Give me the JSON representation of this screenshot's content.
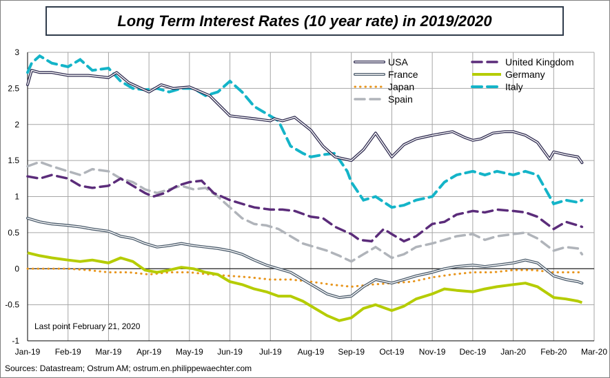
{
  "chart_data": {
    "type": "line",
    "title": "Long Term Interest Rates (10 year rate) in 2019/2020",
    "annotation": "Last point February 21, 2020",
    "source": "Sources: Datastream; Ostrum AM; ostrum.en.philippewaechter.com",
    "ylim": [
      -1,
      3
    ],
    "yticks": [
      3,
      2.5,
      2,
      1.5,
      1,
      0.5,
      0,
      -0.5,
      -1
    ],
    "ytick_labels": [
      "3",
      "2.5",
      "2",
      "1.5",
      "1",
      "0.5",
      "0",
      "-0.5",
      "-1"
    ],
    "xlim": [
      0,
      14
    ],
    "xtick_labels": [
      "Jan-19",
      "Feb-19",
      "Mar-19",
      "Apr-19",
      "May-19",
      "Jun-19",
      "Jul-19",
      "Aug-19",
      "Sep-19",
      "Oct-19",
      "Nov-19",
      "Dec-19",
      "Jan-20",
      "Feb-20",
      "Mar-20"
    ],
    "grid": true,
    "legend_position": "top-right",
    "series": [
      {
        "name": "USA",
        "color": "#2e2a4f",
        "style": "double",
        "x": [
          0,
          0.05,
          0.1,
          0.3,
          0.6,
          1,
          1.5,
          2,
          2.2,
          2.5,
          3,
          3.3,
          3.6,
          4,
          4.5,
          5,
          5.3,
          5.6,
          6,
          6.1,
          6.3,
          6.6,
          7,
          7.3,
          7.6,
          8,
          8.3,
          8.6,
          9,
          9.3,
          9.6,
          10,
          10.3,
          10.5,
          10.8,
          11,
          11.2,
          11.5,
          11.8,
          12,
          12.3,
          12.6,
          12.9,
          13,
          13.3,
          13.6,
          13.7
        ],
        "y": [
          2.55,
          2.65,
          2.75,
          2.72,
          2.72,
          2.68,
          2.68,
          2.65,
          2.72,
          2.58,
          2.45,
          2.55,
          2.5,
          2.52,
          2.4,
          2.12,
          2.1,
          2.08,
          2.05,
          2.08,
          2.05,
          2.1,
          1.92,
          1.7,
          1.55,
          1.5,
          1.65,
          1.88,
          1.55,
          1.72,
          1.8,
          1.85,
          1.88,
          1.9,
          1.82,
          1.78,
          1.8,
          1.88,
          1.9,
          1.9,
          1.85,
          1.75,
          1.52,
          1.62,
          1.58,
          1.55,
          1.47
        ]
      },
      {
        "name": "United Kingdom",
        "color": "#5b2c7a",
        "style": "dash",
        "x": [
          0,
          0.3,
          0.6,
          1,
          1.3,
          1.6,
          2,
          2.3,
          2.6,
          2.9,
          3.1,
          3.4,
          3.7,
          4,
          4.3,
          4.6,
          5,
          5.3,
          5.6,
          6,
          6.3,
          6.6,
          7,
          7.3,
          7.6,
          8,
          8.2,
          8.5,
          8.8,
          9,
          9.3,
          9.6,
          10,
          10.3,
          10.6,
          11,
          11.3,
          11.6,
          12,
          12.3,
          12.6,
          13,
          13.3,
          13.6,
          13.7
        ],
        "y": [
          1.28,
          1.25,
          1.3,
          1.25,
          1.15,
          1.12,
          1.15,
          1.25,
          1.15,
          1.05,
          1.0,
          1.05,
          1.15,
          1.2,
          1.22,
          1.05,
          0.95,
          0.9,
          0.85,
          0.82,
          0.82,
          0.8,
          0.72,
          0.7,
          0.58,
          0.48,
          0.4,
          0.38,
          0.55,
          0.48,
          0.38,
          0.45,
          0.62,
          0.65,
          0.75,
          0.8,
          0.78,
          0.82,
          0.8,
          0.78,
          0.72,
          0.55,
          0.65,
          0.6,
          0.58
        ]
      },
      {
        "name": "France",
        "color": "#4a5a6a",
        "style": "double",
        "x": [
          0,
          0.3,
          0.6,
          1,
          1.3,
          1.6,
          2,
          2.3,
          2.6,
          2.9,
          3.2,
          3.5,
          3.8,
          4.1,
          4.4,
          4.7,
          5,
          5.3,
          5.6,
          5.9,
          6.2,
          6.5,
          6.8,
          7.1,
          7.4,
          7.7,
          8,
          8.3,
          8.6,
          9,
          9.3,
          9.6,
          10,
          10.3,
          10.6,
          11,
          11.3,
          11.6,
          12,
          12.3,
          12.6,
          13,
          13.3,
          13.6,
          13.7
        ],
        "y": [
          0.7,
          0.65,
          0.62,
          0.6,
          0.58,
          0.55,
          0.52,
          0.45,
          0.42,
          0.35,
          0.3,
          0.32,
          0.35,
          0.32,
          0.3,
          0.28,
          0.25,
          0.2,
          0.12,
          0.05,
          0.0,
          -0.05,
          -0.15,
          -0.25,
          -0.35,
          -0.4,
          -0.38,
          -0.25,
          -0.15,
          -0.2,
          -0.15,
          -0.1,
          -0.05,
          0.0,
          0.03,
          0.05,
          0.03,
          0.05,
          0.08,
          0.12,
          0.08,
          -0.1,
          -0.15,
          -0.18,
          -0.2
        ]
      },
      {
        "name": "Germany",
        "color": "#b5cc00",
        "style": "solid",
        "x": [
          0,
          0.3,
          0.6,
          1,
          1.3,
          1.6,
          2,
          2.3,
          2.6,
          2.9,
          3.2,
          3.5,
          3.8,
          4.1,
          4.4,
          4.7,
          5,
          5.3,
          5.6,
          5.9,
          6.2,
          6.5,
          6.8,
          7.1,
          7.4,
          7.7,
          8,
          8.3,
          8.6,
          9,
          9.3,
          9.6,
          10,
          10.3,
          10.6,
          11,
          11.3,
          11.6,
          12,
          12.3,
          12.6,
          13,
          13.3,
          13.6,
          13.7
        ],
        "y": [
          0.22,
          0.18,
          0.15,
          0.12,
          0.1,
          0.12,
          0.08,
          0.15,
          0.1,
          -0.02,
          -0.05,
          -0.02,
          0.02,
          0.0,
          -0.05,
          -0.08,
          -0.18,
          -0.22,
          -0.28,
          -0.32,
          -0.38,
          -0.38,
          -0.45,
          -0.55,
          -0.65,
          -0.72,
          -0.68,
          -0.55,
          -0.5,
          -0.58,
          -0.52,
          -0.42,
          -0.35,
          -0.28,
          -0.3,
          -0.32,
          -0.28,
          -0.25,
          -0.22,
          -0.2,
          -0.25,
          -0.4,
          -0.42,
          -0.45,
          -0.47
        ]
      },
      {
        "name": "Japan",
        "color": "#e8961e",
        "style": "dot",
        "x": [
          0,
          0.5,
          1,
          1.5,
          2,
          2.5,
          3,
          3.5,
          4,
          4.5,
          5,
          5.5,
          6,
          6.5,
          7,
          7.5,
          8,
          8.5,
          9,
          9.5,
          10,
          10.5,
          11,
          11.5,
          12,
          12.5,
          13,
          13.5,
          13.7
        ],
        "y": [
          0.0,
          0.0,
          0.0,
          -0.02,
          -0.05,
          -0.05,
          -0.08,
          -0.05,
          -0.05,
          -0.08,
          -0.1,
          -0.12,
          -0.15,
          -0.15,
          -0.18,
          -0.22,
          -0.25,
          -0.22,
          -0.2,
          -0.18,
          -0.12,
          -0.08,
          -0.05,
          -0.05,
          -0.02,
          -0.02,
          -0.05,
          -0.05,
          -0.05
        ]
      },
      {
        "name": "Italy",
        "color": "#14b4c8",
        "style": "dash",
        "x": [
          0,
          0.1,
          0.3,
          0.6,
          1,
          1.3,
          1.6,
          2,
          2.3,
          2.6,
          2.9,
          3.2,
          3.5,
          3.8,
          4.1,
          4.4,
          4.7,
          5,
          5.3,
          5.6,
          5.9,
          6.2,
          6.5,
          6.8,
          7,
          7.3,
          7.6,
          7.9,
          8,
          8.3,
          8.6,
          9,
          9.3,
          9.6,
          10,
          10.3,
          10.6,
          11,
          11.3,
          11.6,
          12,
          12.3,
          12.6,
          12.9,
          13,
          13.3,
          13.6,
          13.7
        ],
        "y": [
          2.72,
          2.85,
          2.95,
          2.85,
          2.8,
          2.9,
          2.75,
          2.78,
          2.6,
          2.5,
          2.48,
          2.5,
          2.45,
          2.5,
          2.5,
          2.4,
          2.45,
          2.6,
          2.45,
          2.25,
          2.15,
          2.05,
          1.7,
          1.6,
          1.55,
          1.58,
          1.6,
          1.35,
          1.2,
          0.95,
          1.0,
          0.85,
          0.88,
          0.95,
          1.0,
          1.2,
          1.3,
          1.35,
          1.3,
          1.35,
          1.3,
          1.35,
          1.3,
          1.0,
          0.9,
          0.95,
          0.92,
          0.95
        ]
      },
      {
        "name": "Spain",
        "color": "#b0b4ba",
        "style": "dash",
        "x": [
          0,
          0.3,
          0.6,
          1,
          1.3,
          1.6,
          2,
          2.3,
          2.6,
          2.9,
          3.2,
          3.5,
          3.8,
          4.1,
          4.4,
          4.7,
          5,
          5.3,
          5.6,
          5.9,
          6.2,
          6.5,
          6.8,
          7.1,
          7.4,
          7.7,
          8,
          8.3,
          8.6,
          9,
          9.3,
          9.6,
          10,
          10.3,
          10.6,
          11,
          11.3,
          11.6,
          12,
          12.3,
          12.6,
          13,
          13.3,
          13.6,
          13.7
        ],
        "y": [
          1.42,
          1.48,
          1.42,
          1.35,
          1.3,
          1.38,
          1.35,
          1.25,
          1.2,
          1.1,
          1.05,
          1.1,
          1.15,
          1.1,
          1.12,
          1.0,
          0.85,
          0.7,
          0.62,
          0.6,
          0.55,
          0.45,
          0.35,
          0.3,
          0.25,
          0.18,
          0.1,
          0.2,
          0.3,
          0.15,
          0.2,
          0.3,
          0.35,
          0.4,
          0.45,
          0.48,
          0.4,
          0.45,
          0.48,
          0.5,
          0.42,
          0.25,
          0.3,
          0.28,
          0.2
        ]
      }
    ]
  }
}
